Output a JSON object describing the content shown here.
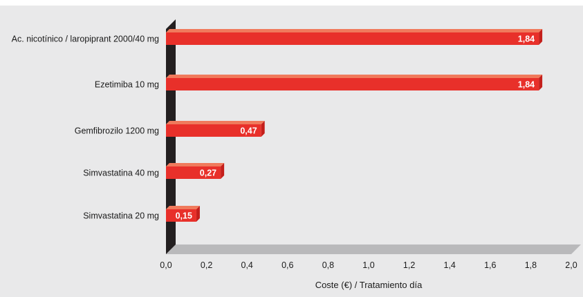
{
  "chart_data": {
    "type": "bar",
    "orientation": "horizontal",
    "categories": [
      "Ac. nicotínico / laropiprant 2000/40 mg",
      "Ezetimiba 10 mg",
      "Gemfibrozilo 1200 mg",
      "Simvastatina 40 mg",
      "Simvastatina 20 mg"
    ],
    "values": [
      1.84,
      1.84,
      0.47,
      0.27,
      0.15
    ],
    "value_labels": [
      "1,84",
      "1,84",
      "0,47",
      "0,27",
      "0,15"
    ],
    "xlabel": "Coste (€) / Tratamiento día",
    "xlim": [
      0,
      2.0
    ],
    "xticks": [
      0,
      0.2,
      0.4,
      0.6,
      0.8,
      1.0,
      1.2,
      1.4,
      1.6,
      1.8,
      2.0
    ],
    "xtick_labels": [
      "0,0",
      "0,2",
      "0,4",
      "0,6",
      "0,8",
      "1,0",
      "1,2",
      "1,4",
      "1,6",
      "1,8",
      "2,0"
    ],
    "grid": false,
    "style": "3d",
    "colors": {
      "bar_front": "#e8302a",
      "bar_top": "#f07a5c",
      "bar_side": "#c41f1b",
      "wall": "#231f20",
      "floor": "#b9b9bb",
      "background": "#e9e9ea"
    }
  }
}
